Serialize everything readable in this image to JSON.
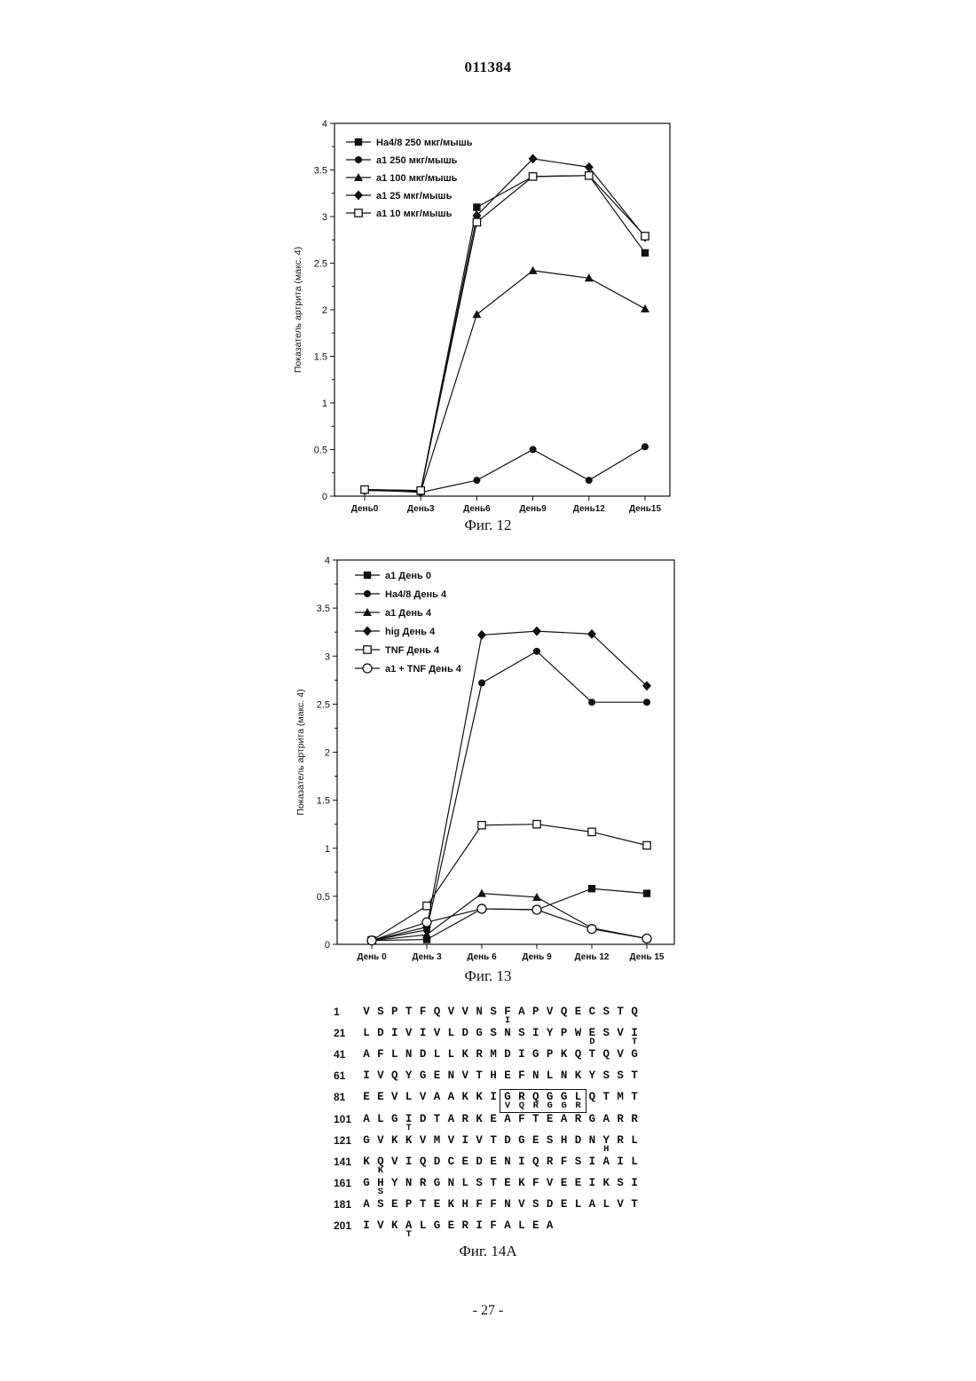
{
  "page": {
    "doc_number": "011384",
    "page_number": "- 27 -",
    "caption_fig12": "Фиг. 12",
    "caption_fig13": "Фиг. 13",
    "caption_fig14a": "Фиг. 14А"
  },
  "chart_data": [
    {
      "type": "line",
      "title": "",
      "ylabel": "Показатель артрита (макс. 4)",
      "xlabel": "",
      "categories": [
        "День0",
        "День3",
        "День6",
        "День9",
        "День12",
        "День15"
      ],
      "ylim": [
        0,
        4
      ],
      "yticks": [
        0,
        0.5,
        1,
        1.5,
        2,
        2.5,
        3,
        3.5,
        4
      ],
      "legend_position": "top-left",
      "series": [
        {
          "name": "Ha4/8 250 мкг/мышь",
          "marker": "square-filled",
          "values": [
            0.07,
            0.06,
            3.1,
            3.43,
            3.44,
            2.61
          ]
        },
        {
          "name": "a1 250 мкг/мышь",
          "marker": "circle-filled",
          "values": [
            0.07,
            0.04,
            0.17,
            0.5,
            0.17,
            0.53
          ]
        },
        {
          "name": "a1 100 мкг/мышь",
          "marker": "triangle-filled",
          "values": [
            0.07,
            0.05,
            1.95,
            2.42,
            2.34,
            2.01
          ]
        },
        {
          "name": "a1 25 мкг/мышь",
          "marker": "diamond-filled",
          "values": [
            0.06,
            0.05,
            3.01,
            3.62,
            3.53,
            2.78
          ]
        },
        {
          "name": "a1 10 мкг/мышь",
          "marker": "square-open",
          "values": [
            0.07,
            0.06,
            2.94,
            3.43,
            3.44,
            2.79
          ]
        }
      ]
    },
    {
      "type": "line",
      "title": "",
      "ylabel": "Показатель артрита (макс. 4)",
      "xlabel": "",
      "categories": [
        "День 0",
        "День 3",
        "День 6",
        "День 9",
        "День 12",
        "День 15"
      ],
      "ylim": [
        0,
        4
      ],
      "yticks": [
        0,
        0.5,
        1,
        1.5,
        2,
        2.5,
        3,
        3.5,
        4
      ],
      "legend_position": "top-left",
      "series": [
        {
          "name": "a1 День 0",
          "marker": "square-filled",
          "values": [
            0.04,
            0.05,
            0.37,
            0.36,
            0.58,
            0.53
          ]
        },
        {
          "name": "Ha4/8 День 4",
          "marker": "circle-filled",
          "values": [
            0.04,
            0.15,
            2.72,
            3.05,
            2.52,
            2.52
          ]
        },
        {
          "name": "a1 День 4",
          "marker": "triangle-filled",
          "values": [
            0.04,
            0.1,
            0.53,
            0.49,
            0.17,
            0.06
          ]
        },
        {
          "name": "hig День 4",
          "marker": "diamond-filled",
          "values": [
            0.04,
            0.18,
            3.22,
            3.26,
            3.23,
            2.69
          ]
        },
        {
          "name": "TNF День 4",
          "marker": "square-open",
          "values": [
            0.04,
            0.4,
            1.24,
            1.25,
            1.17,
            1.03
          ]
        },
        {
          "name": "a1 + TNF День 4",
          "marker": "circle-open",
          "values": [
            0.04,
            0.23,
            0.37,
            0.36,
            0.16,
            0.06
          ]
        }
      ]
    }
  ],
  "sequence": {
    "rows": [
      {
        "num": "1",
        "residues": "VSPTFQVVNSFAPVQECSTQ",
        "variants": [
          {
            "pos": 10,
            "char": "I"
          }
        ]
      },
      {
        "num": "21",
        "residues": "LDIVIVLDGSNSIYPWESVI",
        "variants": [
          {
            "pos": 16,
            "char": "D"
          },
          {
            "pos": 19,
            "char": "T"
          }
        ]
      },
      {
        "num": "41",
        "residues": "AFLNDLLKRMDIGPKQTQVG",
        "variants": []
      },
      {
        "num": "61",
        "residues": "IVQYGENVTHEFNLNKYSST",
        "variants": []
      },
      {
        "num": "81",
        "residues": "EEVLVAAKKIGRQGGLQTMT",
        "variants": [
          {
            "pos": 10,
            "char": "V"
          },
          {
            "pos": 11,
            "char": "Q"
          },
          {
            "pos": 12,
            "char": "R"
          },
          {
            "pos": 13,
            "char": "G"
          },
          {
            "pos": 14,
            "char": "G"
          },
          {
            "pos": 15,
            "char": "R"
          }
        ]
      },
      {
        "num": "101",
        "residues": "ALGIDTARKEAFTEARGARR",
        "variants": [
          {
            "pos": 3,
            "char": "T"
          }
        ]
      },
      {
        "num": "121",
        "residues": "GVKKVMVIVTDGESHDNYRL",
        "variants": [
          {
            "pos": 17,
            "char": "H"
          }
        ]
      },
      {
        "num": "141",
        "residues": "KQVIQDCEDENIQRFSIAIL",
        "variants": [
          {
            "pos": 1,
            "char": "K"
          }
        ]
      },
      {
        "num": "161",
        "residues": "GHYNRGNLSTEKFVEEIKSI",
        "variants": [
          {
            "pos": 1,
            "char": "S"
          }
        ]
      },
      {
        "num": "181",
        "residues": "ASEPTEKHFFNVSDELALVT",
        "variants": []
      },
      {
        "num": "201",
        "residues": "IVKALGERIFALEA",
        "variants": [
          {
            "pos": 3,
            "char": "T"
          }
        ]
      }
    ],
    "boxed": {
      "row": 4,
      "start": 10,
      "end": 15
    }
  }
}
